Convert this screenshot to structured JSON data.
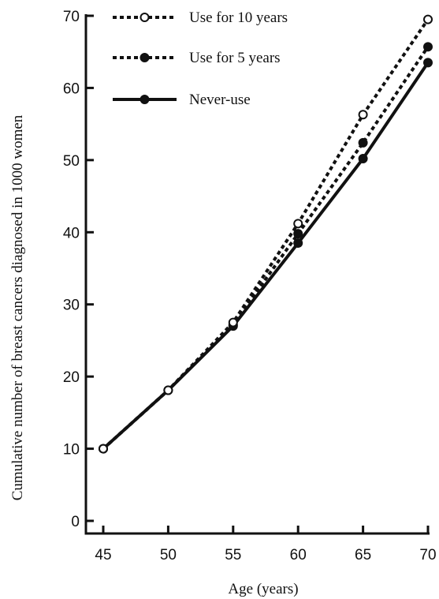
{
  "chart_data": {
    "type": "line",
    "title": "",
    "xlabel": "Age (years)",
    "ylabel": "Cumulative number of breast cancers diagnosed in 1000 women",
    "xlim": [
      45,
      70
    ],
    "ylim": [
      0,
      70
    ],
    "x_ticks": [
      "45",
      "50",
      "55",
      "60",
      "65",
      "70"
    ],
    "y_ticks": [
      "0",
      "10",
      "20",
      "30",
      "40",
      "50",
      "60",
      "70"
    ],
    "grid": false,
    "legend_position": "top-left",
    "series": [
      {
        "name": "Use for 10 years",
        "line_style": "dotted",
        "marker": "open-circle",
        "x": [
          45,
          50,
          55,
          60,
          65,
          70
        ],
        "y": [
          10,
          18.1,
          27.5,
          41.2,
          56.3,
          69.5
        ]
      },
      {
        "name": "Use for 5 years",
        "line_style": "dotted",
        "marker": "filled-circle",
        "x": [
          45,
          50,
          55,
          60,
          65,
          70
        ],
        "y": [
          10,
          18.1,
          27.2,
          39.8,
          52.4,
          65.7
        ]
      },
      {
        "name": "Never-use",
        "line_style": "solid",
        "marker": "filled-circle",
        "x": [
          45,
          50,
          55,
          60,
          65,
          70
        ],
        "y": [
          10,
          18.1,
          27,
          38.5,
          50.2,
          63.5
        ]
      }
    ]
  }
}
